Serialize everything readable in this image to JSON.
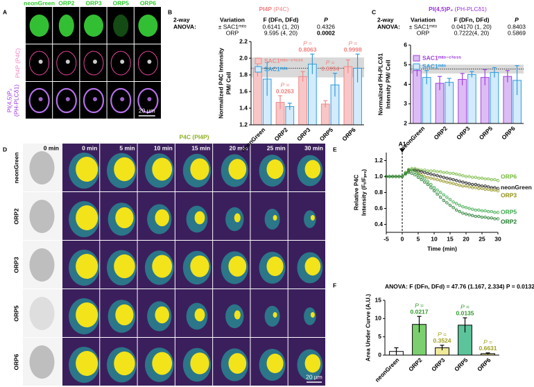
{
  "panels": {
    "A": {
      "letter": "A",
      "columns": [
        "neonGreen",
        "ORP2",
        "ORP3",
        "ORP5",
        "ORP6"
      ],
      "row_labels": [
        [
          "PI4P (P4C)"
        ],
        [
          "PI(4,5)P₂",
          "(PH-PLCδ1)"
        ]
      ],
      "scale_bar": "20 µm"
    },
    "D": {
      "letter": "D",
      "title": "P4C (PI4P)",
      "times": [
        "0 min",
        "0 min",
        "5 min",
        "10 min",
        "15 min",
        "20 min",
        "25 min",
        "30 min"
      ],
      "rows": [
        "neonGreen",
        "ORP2",
        "ORP3",
        "ORP5",
        "ORP6"
      ],
      "scale_bar": "20 µm"
    }
  },
  "chart_data": [
    {
      "type": "bar",
      "letter": "B",
      "title": "PI4P",
      "title_note": "(P4C)",
      "title_color": "#f07f7f",
      "stats": {
        "label": [
          "2-way",
          "ANOVA:"
        ],
        "header": [
          "Variation",
          "F (DFn, DFd)",
          "P"
        ],
        "rows": [
          [
            "± SAC1ᵐᶦᵗᵒ",
            "0.6141 (1, 20)",
            "0.4326"
          ],
          [
            "ORP",
            "9.595 (4, 20)",
            "0.0002"
          ]
        ]
      },
      "y_label": [
        "Normalized P4C Intensity",
        "PM/ Cell"
      ],
      "categories": [
        "neonGreen",
        "ORP2",
        "ORP3",
        "ORP5",
        "ORP6"
      ],
      "series": [
        {
          "name": "SAC1ᵐᶦᵗᵒ⁻ᶜ³⁸⁹ˢ",
          "color": "#f08a8a",
          "fill": "#f8c6c6",
          "values": [
            1.88,
            1.47,
            1.78,
            1.45,
            1.9
          ],
          "errors": [
            0.1,
            0.08,
            0.06,
            0.04,
            0.08
          ]
        },
        {
          "name": "SAC1ᵐᶦᵗᵒ",
          "color": "#2f9be0",
          "fill": "#d3ebfa",
          "values": [
            1.75,
            1.42,
            1.93,
            1.68,
            1.88
          ],
          "errors": [
            0.2,
            0.04,
            0.12,
            0.14,
            0.17
          ]
        }
      ],
      "band": [
        1.77,
        2.01
      ],
      "reference": 1.88,
      "p_label": "P =",
      "p_values": [
        null,
        "0.0263",
        "0.8063",
        "0.0094",
        "0.9998"
      ],
      "ylim": [
        1.2,
        2.2
      ],
      "yticks": [
        1.2,
        1.4,
        1.6,
        1.8,
        {
          "value": 2,
          "label": "2.0"
        },
        2.2
      ]
    },
    {
      "type": "bar",
      "letter": "C",
      "title": "PI(4,5)P₂",
      "title_note": "(PH-PLCδ1)",
      "title_color": "#9b30e0",
      "stats": {
        "label": [
          "2-way",
          "ANOVA:"
        ],
        "header": [
          "Variation",
          "F (DFn, DFd)",
          "P"
        ],
        "rows": [
          [
            "± SAC1ᵐᶦᵗᵒ",
            "0.04170 (1, 20)",
            "0.8403"
          ],
          [
            "ORP",
            "0.7222(4, 20)",
            "0.5869"
          ]
        ]
      },
      "y_label": [
        "Normalized PH-PLCδ1",
        "Intensity PM/ Cell"
      ],
      "categories": [
        "neonGreen",
        "ORP2",
        "ORP3",
        "ORP5",
        "ORP6"
      ],
      "series": [
        {
          "name": "SAC1ᵐᶦᵗᵒ⁻ᶜ³⁸⁹ˢ",
          "color": "#a040e0",
          "fill": "#dcbdf3",
          "values": [
            4.7,
            4.05,
            4.25,
            4.35,
            4.4
          ],
          "errors": [
            0.3,
            0.35,
            0.3,
            0.4,
            0.3
          ]
        },
        {
          "name": "SAC1ᵐᶦᵗᵒ",
          "color": "#2f9be0",
          "fill": "#d3ebfa",
          "values": [
            4.35,
            4.1,
            4.5,
            4.6,
            4.2
          ],
          "errors": [
            0.35,
            0.2,
            0.15,
            0.25,
            0.75
          ]
        }
      ],
      "band": [
        4.55,
        5.0
      ],
      "reference": 4.78,
      "ylim": [
        2,
        6
      ],
      "yticks": [
        2,
        3,
        4,
        5,
        6
      ]
    },
    {
      "type": "line",
      "letter": "E",
      "y_label": [
        "Relative P4C",
        "Intensity (Fₜ/Fₚᵣₑ)"
      ],
      "x_label": "Time (min)",
      "annotation": {
        "text": "A1",
        "x": 0
      },
      "x": [
        -5,
        -4,
        -3,
        -2,
        -1,
        0,
        1,
        2,
        3,
        4,
        5,
        6,
        7,
        8,
        9,
        10,
        11,
        12,
        13,
        14,
        15,
        16,
        17,
        18,
        19,
        20,
        21,
        22,
        23,
        24,
        25,
        26,
        27,
        28,
        29,
        30
      ],
      "series": [
        {
          "name": "ORP6",
          "color": "#74b83a",
          "values": [
            1,
            1,
            1,
            1,
            1,
            1,
            1.05,
            1.09,
            1.1,
            1.1,
            1.09,
            1.08,
            1.08,
            1.07,
            1.07,
            1.07,
            1.06,
            1.06,
            1.05,
            1.05,
            1.04,
            1.04,
            1.03,
            1.02,
            1.01,
            1,
            1,
            0.99,
            0.99,
            0.98,
            0.98,
            0.97,
            0.97,
            0.96,
            0.96,
            0.95
          ]
        },
        {
          "name": "neonGreen",
          "color": "#111111",
          "values": [
            1,
            1,
            1,
            1,
            1,
            1,
            1.04,
            1.07,
            1.08,
            1.08,
            1.07,
            1.06,
            1.05,
            1.04,
            1.03,
            1.02,
            1.01,
            1,
            0.99,
            0.98,
            0.97,
            0.96,
            0.95,
            0.94,
            0.93,
            0.92,
            0.91,
            0.9,
            0.9,
            0.89,
            0.88,
            0.88,
            0.87,
            0.86,
            0.86,
            0.85
          ]
        },
        {
          "name": "ORP3",
          "color": "#8f8f16",
          "values": [
            1,
            1,
            1,
            1,
            1,
            1,
            1.04,
            1.08,
            1.08,
            1.06,
            1.04,
            1.02,
            1,
            0.99,
            0.98,
            0.97,
            0.96,
            0.95,
            0.94,
            0.93,
            0.92,
            0.91,
            0.9,
            0.89,
            0.88,
            0.88,
            0.87,
            0.86,
            0.86,
            0.85,
            0.85,
            0.84,
            0.84,
            0.83,
            0.83,
            0.82
          ]
        },
        {
          "name": "ORP5",
          "color": "#3aa84a",
          "values": [
            1,
            1,
            1,
            1,
            1,
            1,
            1.04,
            1.08,
            1.08,
            1.06,
            1.03,
            1,
            0.97,
            0.94,
            0.9,
            0.86,
            0.83,
            0.8,
            0.77,
            0.74,
            0.71,
            0.68,
            0.66,
            0.64,
            0.62,
            0.61,
            0.6,
            0.59,
            0.58,
            0.58,
            0.57,
            0.57,
            0.56,
            0.56,
            0.55,
            0.55
          ]
        },
        {
          "name": "ORP2",
          "color": "#1e7a2a",
          "values": [
            1,
            1,
            1,
            1,
            1,
            1,
            1.03,
            1.05,
            1.04,
            1.02,
            0.99,
            0.96,
            0.93,
            0.9,
            0.86,
            0.82,
            0.78,
            0.74,
            0.7,
            0.67,
            0.64,
            0.61,
            0.58,
            0.56,
            0.54,
            0.53,
            0.52,
            0.51,
            0.5,
            0.5,
            0.49,
            0.49,
            0.48,
            0.48,
            0.47,
            0.47
          ]
        }
      ],
      "xlim": [
        -5,
        30
      ],
      "xticks": [
        -5,
        0,
        5,
        10,
        15,
        20,
        25,
        30
      ],
      "ylim": [
        0.3,
        1.3
      ],
      "yticks": [
        0.4,
        0.6,
        0.8,
        {
          "value": 1,
          "label": "1.0"
        },
        1.2
      ]
    },
    {
      "type": "bar",
      "letter": "F",
      "title": "ANOVA: F (DFn, DFd) = 47.76 (1.167, 2.334)",
      "title_note": "P = 0.0132",
      "y_label": [
        "Area Under Curve (A.U.)"
      ],
      "categories": [
        "neonGreen",
        "ORP2",
        "ORP3",
        "ORP5",
        "ORP6"
      ],
      "values": [
        1.0,
        8.4,
        2.0,
        8.2,
        0.4
      ],
      "errors": [
        1.0,
        2.2,
        0.7,
        2.0,
        0.2
      ],
      "colors": [
        "#ffffff",
        "#7ccf6e",
        "#efe99a",
        "#5cc49a",
        "#e4e08c"
      ],
      "p_label": "P =",
      "p_values": [
        null,
        "0.0217",
        "0.3524",
        "0.0135",
        "0.6631"
      ],
      "p_colors": [
        null,
        "#2f9a2a",
        "#a0a020",
        "#2f9a2a",
        "#a0a020"
      ],
      "ylim": [
        0,
        15
      ],
      "yticks": [
        0,
        5,
        10,
        15
      ]
    }
  ]
}
